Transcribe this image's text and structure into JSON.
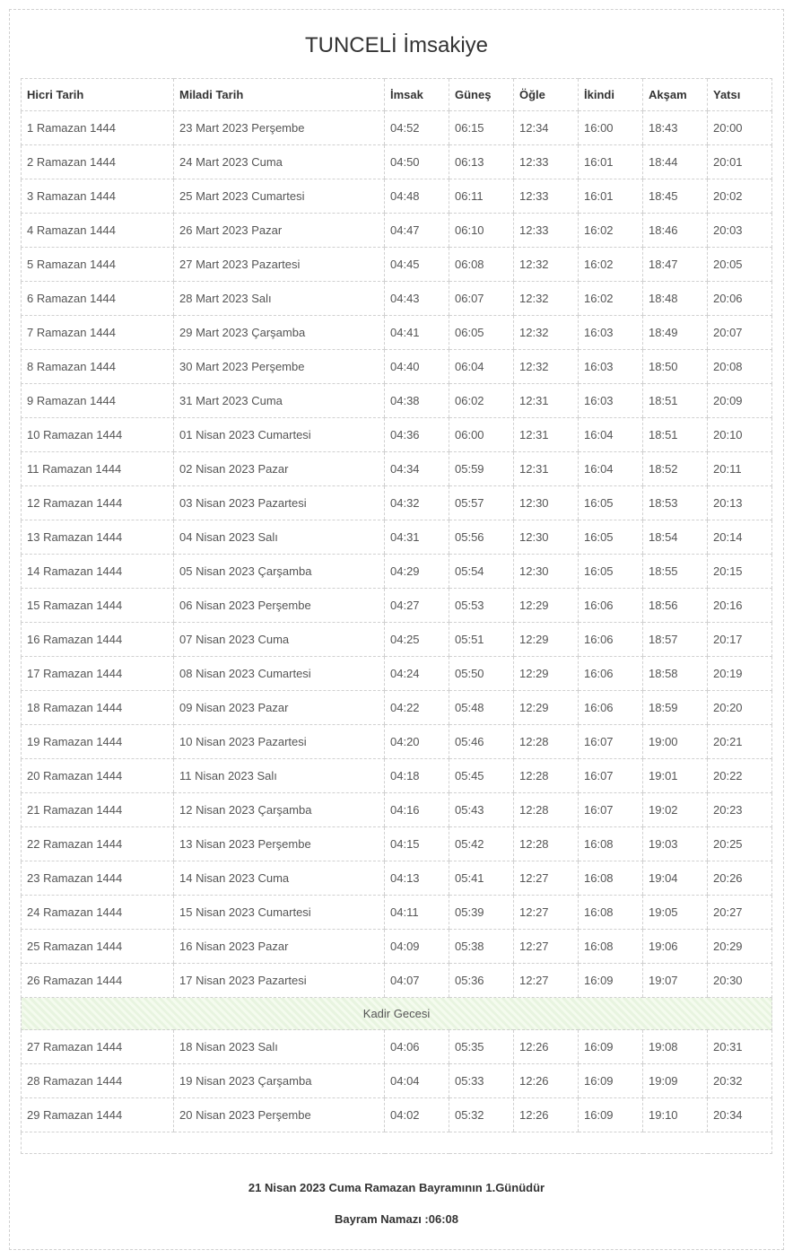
{
  "title": "TUNCELİ İmsakiye",
  "columns": [
    "Hicri Tarih",
    "Miladi Tarih",
    "İmsak",
    "Güneş",
    "Öğle",
    "İkindi",
    "Akşam",
    "Yatsı"
  ],
  "special_label": "Kadir Gecesi",
  "special_after_index": 25,
  "rows": [
    [
      "1 Ramazan 1444",
      "23 Mart 2023 Perşembe",
      "04:52",
      "06:15",
      "12:34",
      "16:00",
      "18:43",
      "20:00"
    ],
    [
      "2 Ramazan 1444",
      "24 Mart 2023 Cuma",
      "04:50",
      "06:13",
      "12:33",
      "16:01",
      "18:44",
      "20:01"
    ],
    [
      "3 Ramazan 1444",
      "25 Mart 2023 Cumartesi",
      "04:48",
      "06:11",
      "12:33",
      "16:01",
      "18:45",
      "20:02"
    ],
    [
      "4 Ramazan 1444",
      "26 Mart 2023 Pazar",
      "04:47",
      "06:10",
      "12:33",
      "16:02",
      "18:46",
      "20:03"
    ],
    [
      "5 Ramazan 1444",
      "27 Mart 2023 Pazartesi",
      "04:45",
      "06:08",
      "12:32",
      "16:02",
      "18:47",
      "20:05"
    ],
    [
      "6 Ramazan 1444",
      "28 Mart 2023 Salı",
      "04:43",
      "06:07",
      "12:32",
      "16:02",
      "18:48",
      "20:06"
    ],
    [
      "7 Ramazan 1444",
      "29 Mart 2023 Çarşamba",
      "04:41",
      "06:05",
      "12:32",
      "16:03",
      "18:49",
      "20:07"
    ],
    [
      "8 Ramazan 1444",
      "30 Mart 2023 Perşembe",
      "04:40",
      "06:04",
      "12:32",
      "16:03",
      "18:50",
      "20:08"
    ],
    [
      "9 Ramazan 1444",
      "31 Mart 2023 Cuma",
      "04:38",
      "06:02",
      "12:31",
      "16:03",
      "18:51",
      "20:09"
    ],
    [
      "10 Ramazan 1444",
      "01 Nisan 2023 Cumartesi",
      "04:36",
      "06:00",
      "12:31",
      "16:04",
      "18:51",
      "20:10"
    ],
    [
      "11 Ramazan 1444",
      "02 Nisan 2023 Pazar",
      "04:34",
      "05:59",
      "12:31",
      "16:04",
      "18:52",
      "20:11"
    ],
    [
      "12 Ramazan 1444",
      "03 Nisan 2023 Pazartesi",
      "04:32",
      "05:57",
      "12:30",
      "16:05",
      "18:53",
      "20:13"
    ],
    [
      "13 Ramazan 1444",
      "04 Nisan 2023 Salı",
      "04:31",
      "05:56",
      "12:30",
      "16:05",
      "18:54",
      "20:14"
    ],
    [
      "14 Ramazan 1444",
      "05 Nisan 2023 Çarşamba",
      "04:29",
      "05:54",
      "12:30",
      "16:05",
      "18:55",
      "20:15"
    ],
    [
      "15 Ramazan 1444",
      "06 Nisan 2023 Perşembe",
      "04:27",
      "05:53",
      "12:29",
      "16:06",
      "18:56",
      "20:16"
    ],
    [
      "16 Ramazan 1444",
      "07 Nisan 2023 Cuma",
      "04:25",
      "05:51",
      "12:29",
      "16:06",
      "18:57",
      "20:17"
    ],
    [
      "17 Ramazan 1444",
      "08 Nisan 2023 Cumartesi",
      "04:24",
      "05:50",
      "12:29",
      "16:06",
      "18:58",
      "20:19"
    ],
    [
      "18 Ramazan 1444",
      "09 Nisan 2023 Pazar",
      "04:22",
      "05:48",
      "12:29",
      "16:06",
      "18:59",
      "20:20"
    ],
    [
      "19 Ramazan 1444",
      "10 Nisan 2023 Pazartesi",
      "04:20",
      "05:46",
      "12:28",
      "16:07",
      "19:00",
      "20:21"
    ],
    [
      "20 Ramazan 1444",
      "11 Nisan 2023 Salı",
      "04:18",
      "05:45",
      "12:28",
      "16:07",
      "19:01",
      "20:22"
    ],
    [
      "21 Ramazan 1444",
      "12 Nisan 2023 Çarşamba",
      "04:16",
      "05:43",
      "12:28",
      "16:07",
      "19:02",
      "20:23"
    ],
    [
      "22 Ramazan 1444",
      "13 Nisan 2023 Perşembe",
      "04:15",
      "05:42",
      "12:28",
      "16:08",
      "19:03",
      "20:25"
    ],
    [
      "23 Ramazan 1444",
      "14 Nisan 2023 Cuma",
      "04:13",
      "05:41",
      "12:27",
      "16:08",
      "19:04",
      "20:26"
    ],
    [
      "24 Ramazan 1444",
      "15 Nisan 2023 Cumartesi",
      "04:11",
      "05:39",
      "12:27",
      "16:08",
      "19:05",
      "20:27"
    ],
    [
      "25 Ramazan 1444",
      "16 Nisan 2023 Pazar",
      "04:09",
      "05:38",
      "12:27",
      "16:08",
      "19:06",
      "20:29"
    ],
    [
      "26 Ramazan 1444",
      "17 Nisan 2023 Pazartesi",
      "04:07",
      "05:36",
      "12:27",
      "16:09",
      "19:07",
      "20:30"
    ],
    [
      "27 Ramazan 1444",
      "18 Nisan 2023 Salı",
      "04:06",
      "05:35",
      "12:26",
      "16:09",
      "19:08",
      "20:31"
    ],
    [
      "28 Ramazan 1444",
      "19 Nisan 2023 Çarşamba",
      "04:04",
      "05:33",
      "12:26",
      "16:09",
      "19:09",
      "20:32"
    ],
    [
      "29 Ramazan 1444",
      "20 Nisan 2023 Perşembe",
      "04:02",
      "05:32",
      "12:26",
      "16:09",
      "19:10",
      "20:34"
    ]
  ],
  "footer": {
    "line1": "21 Nisan 2023 Cuma Ramazan Bayramının 1.Günüdür",
    "line2": "Bayram Namazı :06:08"
  },
  "style": {
    "border_color": "#d0d0d0",
    "text_color": "#555555",
    "header_text_color": "#333333",
    "special_row_bg1": "#e8f4e0",
    "special_row_bg2": "#f4fbee",
    "title_fontsize": 24,
    "body_fontsize": 13
  }
}
